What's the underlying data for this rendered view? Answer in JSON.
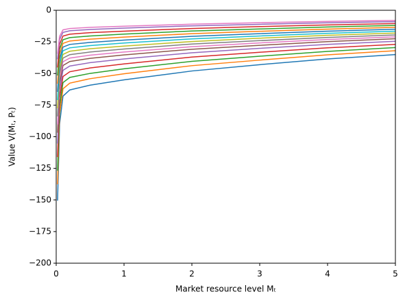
{
  "chart_data": {
    "type": "line",
    "x_label": "Market resource level Mₜ",
    "y_label": "Value V(Mₜ, Pₜ)",
    "x": [
      0.02,
      0.05,
      0.1,
      0.2,
      0.5,
      1,
      2,
      3,
      4,
      5
    ],
    "series": [
      {
        "color": "#1f77b4",
        "values": [
          -150.5,
          -90,
          -67.9,
          -63,
          -59.2,
          -55,
          -48,
          -43,
          -38.5,
          -35
        ]
      },
      {
        "color": "#ff7f0e",
        "values": [
          -137.6,
          -82.2,
          -62.1,
          -57.6,
          -54.1,
          -50.2,
          -43.8,
          -39.4,
          -35.2,
          -32
        ]
      },
      {
        "color": "#2ca02c",
        "values": [
          -126.9,
          -75.8,
          -57.2,
          -53.1,
          -49.9,
          -46.3,
          -40.4,
          -36.3,
          -32.5,
          -29.5
        ]
      },
      {
        "color": "#d62728",
        "values": [
          -116.1,
          -69.4,
          -52.4,
          -48.6,
          -45.6,
          -42.4,
          -37,
          -33.2,
          -29.7,
          -27
        ]
      },
      {
        "color": "#9467bd",
        "values": [
          -105.4,
          -63,
          -47.5,
          -44.1,
          -41.4,
          -38.5,
          -33.6,
          -30.1,
          -27,
          -24.5
        ]
      },
      {
        "color": "#8c564b",
        "values": [
          -96.8,
          -57.8,
          -43.7,
          -40.5,
          -38,
          -35.3,
          -30.8,
          -27.7,
          -24.8,
          -22.5
        ]
      },
      {
        "color": "#e377c2",
        "values": [
          -90.3,
          -54,
          -40.7,
          -37.8,
          -35.5,
          -33,
          -28.8,
          -25.8,
          -23.1,
          -21
        ]
      },
      {
        "color": "#7f7f7f",
        "values": [
          -83.9,
          -50.1,
          -37.8,
          -35.1,
          -33,
          -30.6,
          -26.7,
          -24,
          -21.5,
          -19.5
        ]
      },
      {
        "color": "#bcbd22",
        "values": [
          -77.4,
          -46.3,
          -34.9,
          -32.4,
          -30.4,
          -28.3,
          -24.7,
          -22.1,
          -19.8,
          -18
        ]
      },
      {
        "color": "#17becf",
        "values": [
          -71,
          -42.4,
          -32,
          -29.7,
          -27.9,
          -25.9,
          -22.6,
          -20.3,
          -18.2,
          -16.5
        ]
      },
      {
        "color": "#1f77b4",
        "values": [
          -64.5,
          -38.6,
          -29.1,
          -27,
          -25.4,
          -23.6,
          -20.6,
          -18.5,
          -16.5,
          -15
        ]
      },
      {
        "color": "#ff7f0e",
        "values": [
          -58.1,
          -34.7,
          -26.2,
          -24.3,
          -22.8,
          -21.2,
          -18.5,
          -16.6,
          -14.9,
          -13.5
        ]
      },
      {
        "color": "#2ca02c",
        "values": [
          -51.6,
          -30.8,
          -23.3,
          -21.6,
          -20.3,
          -18.8,
          -16.4,
          -14.8,
          -13.2,
          -12
        ]
      },
      {
        "color": "#d62728",
        "values": [
          -45.2,
          -27,
          -20.4,
          -18.9,
          -17.7,
          -16.5,
          -14.4,
          -12.9,
          -11.6,
          -10.5
        ]
      },
      {
        "color": "#9467bd",
        "values": [
          -38.7,
          -23.1,
          -17.5,
          -16.2,
          -15.2,
          -14.1,
          -12.3,
          -11.1,
          -9.9,
          -9
        ]
      },
      {
        "color": "#e377c2",
        "values": [
          -34.4,
          -20.6,
          -15.5,
          -14.4,
          -13.5,
          -12.6,
          -11,
          -9.8,
          -8.8,
          -8
        ]
      }
    ],
    "xlim": [
      0,
      5
    ],
    "ylim": [
      -200,
      0
    ],
    "xticks": [
      0,
      1,
      2,
      3,
      4,
      5
    ],
    "yticks": [
      {
        "value": -200,
        "label": "−200"
      },
      {
        "value": -175,
        "label": "−175"
      },
      {
        "value": -150,
        "label": "−150"
      },
      {
        "value": -125,
        "label": "−125"
      },
      {
        "value": -100,
        "label": "−100"
      },
      {
        "value": -75,
        "label": "−75"
      },
      {
        "value": -50,
        "label": "−50"
      },
      {
        "value": -25,
        "label": "−25"
      },
      0
    ],
    "grid": false
  }
}
